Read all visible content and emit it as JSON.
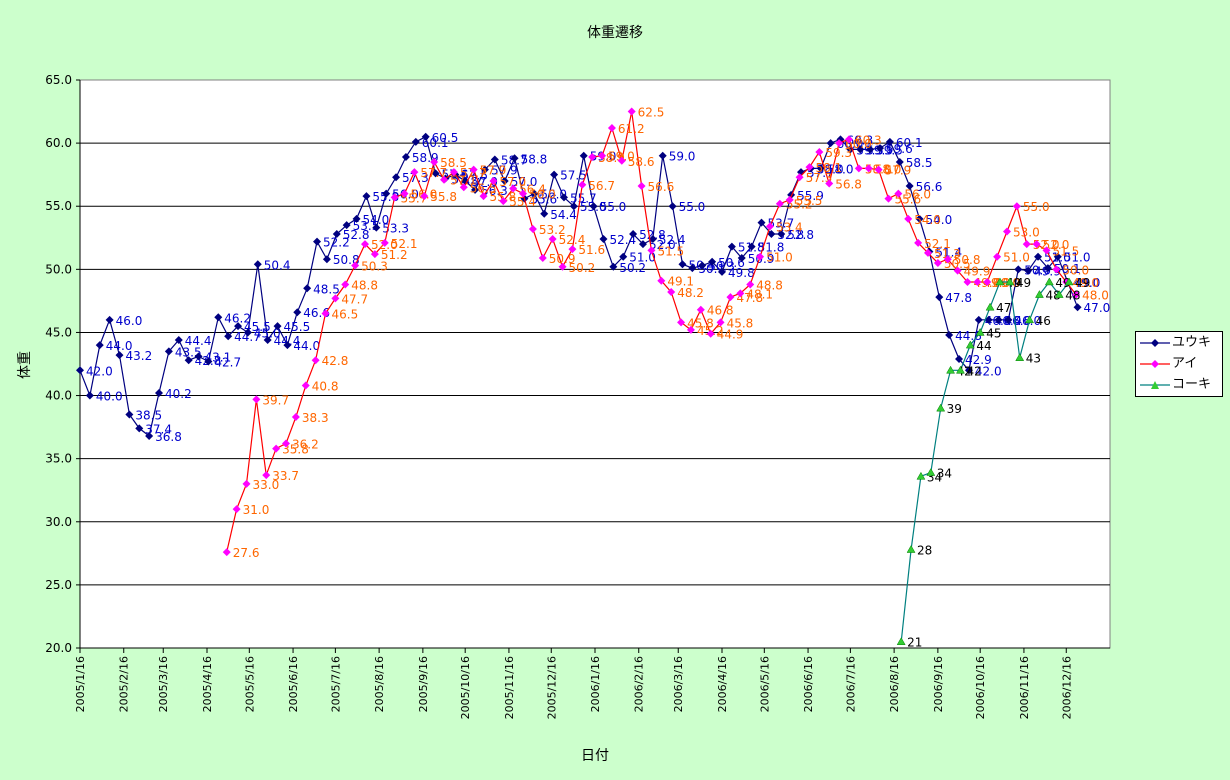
{
  "chart_data": {
    "type": "line",
    "title": "体重遷移",
    "xlabel": "日付",
    "ylabel": "体重",
    "ylim": [
      20.0,
      65.0
    ],
    "yticks": [
      "20.0",
      "25.0",
      "30.0",
      "35.0",
      "40.0",
      "45.0",
      "50.0",
      "55.0",
      "60.0",
      "65.0"
    ],
    "x_range": [
      "2005-01-16",
      "2007-01-16"
    ],
    "x_ticks": [
      {
        "date": "2005-01-16",
        "label": "2005/1/16"
      },
      {
        "date": "2005-02-16",
        "label": "2005/2/16"
      },
      {
        "date": "2005-03-16",
        "label": "2005/3/16"
      },
      {
        "date": "2005-04-16",
        "label": "2005/4/16"
      },
      {
        "date": "2005-05-16",
        "label": "2005/5/16"
      },
      {
        "date": "2005-06-16",
        "label": "2005/6/16"
      },
      {
        "date": "2005-07-16",
        "label": "2005/7/16"
      },
      {
        "date": "2005-08-16",
        "label": "2005/8/16"
      },
      {
        "date": "2005-09-16",
        "label": "2005/9/16"
      },
      {
        "date": "2005-10-16",
        "label": "2005/10/16"
      },
      {
        "date": "2005-11-16",
        "label": "2005/11/16"
      },
      {
        "date": "2005-12-16",
        "label": "2005/12/16"
      },
      {
        "date": "2006-01-16",
        "label": "2006/1/16"
      },
      {
        "date": "2006-02-16",
        "label": "2006/2/16"
      },
      {
        "date": "2006-03-16",
        "label": "2006/3/16"
      },
      {
        "date": "2006-04-16",
        "label": "2006/4/16"
      },
      {
        "date": "2006-05-16",
        "label": "2006/5/16"
      },
      {
        "date": "2006-06-16",
        "label": "2006/6/16"
      },
      {
        "date": "2006-07-16",
        "label": "2006/7/16"
      },
      {
        "date": "2006-08-16",
        "label": "2006/8/16"
      },
      {
        "date": "2006-09-16",
        "label": "2006/9/16"
      },
      {
        "date": "2006-10-16",
        "label": "2006/10/16"
      },
      {
        "date": "2006-11-16",
        "label": "2006/11/16"
      },
      {
        "date": "2006-12-16",
        "label": "2006/12/16"
      }
    ],
    "grid": true,
    "legend_position": "right",
    "series": [
      {
        "name": "ユウキ",
        "color": "#000080",
        "label_color": "#0000cc",
        "marker": "diamond",
        "decimals": 1,
        "points": [
          [
            "2005-01-16",
            42.0
          ],
          [
            "2005-01-23",
            40.0
          ],
          [
            "2005-01-30",
            44.0
          ],
          [
            "2005-02-06",
            46.0
          ],
          [
            "2005-02-13",
            43.2
          ],
          [
            "2005-02-20",
            38.5
          ],
          [
            "2005-02-27",
            37.4
          ],
          [
            "2005-03-06",
            36.8
          ],
          [
            "2005-03-13",
            40.2
          ],
          [
            "2005-03-20",
            43.5
          ],
          [
            "2005-03-27",
            44.4
          ],
          [
            "2005-04-03",
            42.8
          ],
          [
            "2005-04-10",
            43.1
          ],
          [
            "2005-04-17",
            42.7
          ],
          [
            "2005-04-24",
            46.2
          ],
          [
            "2005-05-01",
            44.7
          ],
          [
            "2005-05-08",
            45.5
          ],
          [
            "2005-05-15",
            45.0
          ],
          [
            "2005-05-22",
            50.4
          ],
          [
            "2005-05-29",
            44.4
          ],
          [
            "2005-06-05",
            45.5
          ],
          [
            "2005-06-12",
            44.0
          ],
          [
            "2005-06-19",
            46.6
          ],
          [
            "2005-06-26",
            48.5
          ],
          [
            "2005-07-03",
            52.2
          ],
          [
            "2005-07-10",
            50.8
          ],
          [
            "2005-07-17",
            52.8
          ],
          [
            "2005-07-24",
            53.5
          ],
          [
            "2005-07-31",
            54.0
          ],
          [
            "2005-08-07",
            55.8
          ],
          [
            "2005-08-14",
            53.3
          ],
          [
            "2005-08-21",
            56.0
          ],
          [
            "2005-08-28",
            57.3
          ],
          [
            "2005-09-04",
            58.9
          ],
          [
            "2005-09-11",
            60.1
          ],
          [
            "2005-09-18",
            60.5
          ],
          [
            "2005-09-25",
            57.6
          ],
          [
            "2005-10-02",
            57.2
          ],
          [
            "2005-10-09",
            57.5
          ],
          [
            "2005-10-16",
            57.0
          ],
          [
            "2005-10-23",
            56.3
          ],
          [
            "2005-10-30",
            57.9
          ],
          [
            "2005-11-06",
            58.7
          ],
          [
            "2005-11-13",
            57.0
          ],
          [
            "2005-11-20",
            58.8
          ],
          [
            "2005-11-27",
            55.6
          ],
          [
            "2005-12-04",
            56.0
          ],
          [
            "2005-12-11",
            54.4
          ],
          [
            "2005-12-18",
            57.5
          ],
          [
            "2005-12-25",
            55.7
          ],
          [
            "2006-01-01",
            55.0
          ],
          [
            "2006-01-08",
            59.0
          ],
          [
            "2006-01-15",
            55.0
          ],
          [
            "2006-01-22",
            52.4
          ],
          [
            "2006-01-29",
            50.2
          ],
          [
            "2006-02-05",
            51.0
          ],
          [
            "2006-02-12",
            52.8
          ],
          [
            "2006-02-19",
            52.0
          ],
          [
            "2006-02-26",
            52.4
          ],
          [
            "2006-03-05",
            59.0
          ],
          [
            "2006-03-12",
            55.0
          ],
          [
            "2006-03-19",
            50.4
          ],
          [
            "2006-03-26",
            50.1
          ],
          [
            "2006-04-02",
            50.3
          ],
          [
            "2006-04-09",
            50.6
          ],
          [
            "2006-04-16",
            49.8
          ],
          [
            "2006-04-23",
            51.8
          ],
          [
            "2006-04-30",
            50.9
          ],
          [
            "2006-05-07",
            51.8
          ],
          [
            "2006-05-14",
            53.7
          ],
          [
            "2006-05-21",
            52.8
          ],
          [
            "2006-05-28",
            52.8
          ],
          [
            "2006-06-04",
            55.9
          ],
          [
            "2006-06-11",
            57.7
          ],
          [
            "2006-06-18",
            58.0
          ],
          [
            "2006-06-25",
            58.0
          ],
          [
            "2006-07-02",
            60.0
          ],
          [
            "2006-07-09",
            60.3
          ],
          [
            "2006-07-16",
            59.5
          ],
          [
            "2006-07-23",
            59.5
          ],
          [
            "2006-07-30",
            59.5
          ],
          [
            "2006-08-06",
            59.6
          ],
          [
            "2006-08-13",
            60.1
          ],
          [
            "2006-08-20",
            58.5
          ],
          [
            "2006-08-27",
            56.6
          ],
          [
            "2006-09-03",
            54.0
          ],
          [
            "2006-09-10",
            51.4
          ],
          [
            "2006-09-17",
            47.8
          ],
          [
            "2006-09-24",
            44.8
          ],
          [
            "2006-10-01",
            42.9
          ],
          [
            "2006-10-08",
            42.0
          ],
          [
            "2006-10-15",
            46.0
          ],
          [
            "2006-10-22",
            46.0
          ],
          [
            "2006-10-29",
            46.0
          ],
          [
            "2006-11-05",
            46.0
          ],
          [
            "2006-11-12",
            50.0
          ],
          [
            "2006-11-19",
            49.9
          ],
          [
            "2006-11-26",
            51.0
          ],
          [
            "2006-12-03",
            50.1
          ],
          [
            "2006-12-10",
            51.0
          ],
          [
            "2006-12-17",
            49.0
          ],
          [
            "2006-12-24",
            47.0
          ]
        ]
      },
      {
        "name": "アイ",
        "color": "#ff0000",
        "marker_color": "#ff00ff",
        "label_color": "#ff6600",
        "marker": "diamond",
        "decimals": 1,
        "points": [
          [
            "2005-04-30",
            27.6
          ],
          [
            "2005-05-07",
            31.0
          ],
          [
            "2005-05-14",
            33.0
          ],
          [
            "2005-05-21",
            39.7
          ],
          [
            "2005-05-28",
            33.7
          ],
          [
            "2005-06-04",
            35.8
          ],
          [
            "2005-06-11",
            36.2
          ],
          [
            "2005-06-18",
            38.3
          ],
          [
            "2005-06-25",
            40.8
          ],
          [
            "2005-07-02",
            42.8
          ],
          [
            "2005-07-09",
            46.5
          ],
          [
            "2005-07-16",
            47.7
          ],
          [
            "2005-07-23",
            48.8
          ],
          [
            "2005-07-30",
            50.3
          ],
          [
            "2005-08-06",
            52.0
          ],
          [
            "2005-08-13",
            51.2
          ],
          [
            "2005-08-20",
            52.1
          ],
          [
            "2005-08-27",
            55.7
          ],
          [
            "2005-09-03",
            56.0
          ],
          [
            "2005-09-10",
            57.7
          ],
          [
            "2005-09-17",
            55.8
          ],
          [
            "2005-09-24",
            58.5
          ],
          [
            "2005-10-01",
            57.1
          ],
          [
            "2005-10-08",
            57.7
          ],
          [
            "2005-10-15",
            56.5
          ],
          [
            "2005-10-22",
            57.9
          ],
          [
            "2005-10-29",
            55.8
          ],
          [
            "2005-11-05",
            57.0
          ],
          [
            "2005-11-12",
            55.4
          ],
          [
            "2005-11-19",
            56.4
          ],
          [
            "2005-11-26",
            56.0
          ],
          [
            "2005-12-03",
            53.2
          ],
          [
            "2005-12-10",
            50.9
          ],
          [
            "2005-12-17",
            52.4
          ],
          [
            "2005-12-24",
            50.2
          ],
          [
            "2005-12-31",
            51.6
          ],
          [
            "2006-01-07",
            56.7
          ],
          [
            "2006-01-14",
            58.9
          ],
          [
            "2006-01-21",
            59.0
          ],
          [
            "2006-01-28",
            61.2
          ],
          [
            "2006-02-04",
            58.6
          ],
          [
            "2006-02-11",
            62.5
          ],
          [
            "2006-02-18",
            56.6
          ],
          [
            "2006-02-25",
            51.5
          ],
          [
            "2006-03-04",
            49.1
          ],
          [
            "2006-03-11",
            48.2
          ],
          [
            "2006-03-18",
            45.8
          ],
          [
            "2006-03-25",
            45.2
          ],
          [
            "2006-04-01",
            46.8
          ],
          [
            "2006-04-08",
            44.9
          ],
          [
            "2006-04-15",
            45.8
          ],
          [
            "2006-04-22",
            47.8
          ],
          [
            "2006-04-29",
            48.1
          ],
          [
            "2006-05-06",
            48.8
          ],
          [
            "2006-05-13",
            51.0
          ],
          [
            "2006-05-20",
            53.4
          ],
          [
            "2006-05-27",
            55.2
          ],
          [
            "2006-06-03",
            55.5
          ],
          [
            "2006-06-10",
            57.3
          ],
          [
            "2006-06-17",
            58.1
          ],
          [
            "2006-06-24",
            59.3
          ],
          [
            "2006-07-01",
            56.8
          ],
          [
            "2006-07-08",
            60.0
          ],
          [
            "2006-07-15",
            60.3
          ],
          [
            "2006-07-22",
            58.0
          ],
          [
            "2006-07-29",
            58.0
          ],
          [
            "2006-08-05",
            57.9
          ],
          [
            "2006-08-12",
            55.6
          ],
          [
            "2006-08-19",
            56.0
          ],
          [
            "2006-08-26",
            54.0
          ],
          [
            "2006-09-02",
            52.1
          ],
          [
            "2006-09-09",
            51.3
          ],
          [
            "2006-09-16",
            50.5
          ],
          [
            "2006-09-23",
            50.8
          ],
          [
            "2006-09-30",
            49.9
          ],
          [
            "2006-10-07",
            49.0
          ],
          [
            "2006-10-14",
            49.0
          ],
          [
            "2006-10-21",
            49.0
          ],
          [
            "2006-10-28",
            51.0
          ],
          [
            "2006-11-04",
            53.0
          ],
          [
            "2006-11-11",
            55.0
          ],
          [
            "2006-11-18",
            52.0
          ],
          [
            "2006-11-25",
            52.0
          ],
          [
            "2006-12-02",
            51.5
          ],
          [
            "2006-12-09",
            50.0
          ],
          [
            "2006-12-16",
            49.0
          ],
          [
            "2006-12-23",
            48.0
          ]
        ]
      },
      {
        "name": "コーキ",
        "color": "#008080",
        "marker_color": "#33cc33",
        "label_color": "#000000",
        "marker": "triangle",
        "decimals": 0,
        "points": [
          [
            "2006-08-21",
            20.5
          ],
          [
            "2006-08-28",
            27.8
          ],
          [
            "2006-09-04",
            33.6
          ],
          [
            "2006-09-11",
            33.9
          ],
          [
            "2006-09-18",
            39.0
          ],
          [
            "2006-09-25",
            42.0
          ],
          [
            "2006-10-02",
            42.0
          ],
          [
            "2006-10-09",
            44.0
          ],
          [
            "2006-10-16",
            45.0
          ],
          [
            "2006-10-23",
            47.0
          ],
          [
            "2006-10-30",
            49.0
          ],
          [
            "2006-11-06",
            49.0
          ],
          [
            "2006-11-13",
            43.0
          ],
          [
            "2006-11-20",
            46.0
          ],
          [
            "2006-11-27",
            48.0
          ],
          [
            "2006-12-04",
            49.0
          ],
          [
            "2006-12-11",
            48.0
          ],
          [
            "2006-12-18",
            49.0
          ]
        ]
      }
    ]
  }
}
